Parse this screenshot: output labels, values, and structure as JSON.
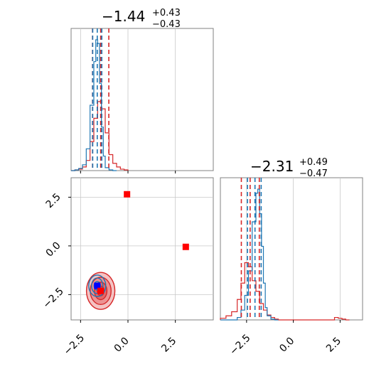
{
  "chart_data": [
    {
      "type": "histogram",
      "panel": "top-left",
      "title": {
        "value": "−1.44",
        "plus": "+0.43",
        "minus": "−0.43"
      },
      "xlim": [
        -3.0,
        4.5
      ],
      "x_ticks": [
        -2.5,
        0.0,
        2.5
      ],
      "grid": true,
      "series": [
        {
          "color": "#d62728",
          "bins": [
            -3.0,
            -2.8,
            -2.6,
            -2.4,
            -2.2,
            -2.0,
            -1.8,
            -1.6,
            -1.4,
            -1.2,
            -1.0,
            -0.8,
            -0.6,
            -0.4,
            -0.2,
            0.0
          ],
          "counts": [
            0,
            1,
            2,
            5,
            14,
            40,
            72,
            95,
            85,
            52,
            22,
            10,
            5,
            2,
            1
          ]
        },
        {
          "color": "#1f77b4",
          "bins": [
            -3.0,
            -2.8,
            -2.6,
            -2.4,
            -2.2,
            -2.0,
            -1.8,
            -1.7,
            -1.6,
            -1.5,
            -1.4,
            -1.3,
            -1.2,
            -1.0,
            -0.8,
            -0.6
          ],
          "counts": [
            0,
            1,
            3,
            8,
            30,
            90,
            150,
            180,
            175,
            120,
            60,
            20,
            4,
            1,
            0
          ]
        }
      ],
      "quantile_lines": [
        {
          "color": "#d62728",
          "x": [
            -1.87,
            -1.44,
            -1.01
          ]
        },
        {
          "color": "#1f77b4",
          "x": [
            -1.86,
            -1.62,
            -1.38
          ]
        }
      ]
    },
    {
      "type": "scatter-contour",
      "panel": "bottom-left",
      "xlim": [
        -3.0,
        4.5
      ],
      "ylim": [
        -3.8,
        3.5
      ],
      "x_ticks": [
        -2.5,
        0.0,
        2.5
      ],
      "y_ticks": [
        -2.5,
        0.0,
        2.5
      ],
      "grid": true,
      "markers": [
        {
          "color": "#ff0000",
          "shape": "square",
          "x": -0.05,
          "y": 2.65
        },
        {
          "color": "#ff0000",
          "shape": "square",
          "x": 3.05,
          "y": -0.05
        },
        {
          "color": "#0000ff",
          "shape": "square",
          "x": -1.62,
          "y": -2.05
        },
        {
          "color": "#ff0000",
          "shape": "square",
          "x": -1.44,
          "y": -2.31
        }
      ],
      "contours": [
        {
          "color": "#d62728",
          "cx": -1.44,
          "cy": -2.31,
          "levels": [
            [
              0.75,
              0.95
            ],
            [
              0.55,
              0.7
            ],
            [
              0.33,
              0.45
            ],
            [
              0.18,
              0.25
            ]
          ]
        },
        {
          "color": "#1f77b4",
          "cx": -1.62,
          "cy": -2.05,
          "levels": [
            [
              0.45,
              0.55
            ],
            [
              0.3,
              0.4
            ],
            [
              0.17,
              0.22
            ]
          ]
        }
      ]
    },
    {
      "type": "histogram",
      "panel": "bottom-right",
      "title": {
        "value": "−2.31",
        "plus": "+0.49",
        "minus": "−0.47"
      },
      "xlim": [
        -3.9,
        3.7
      ],
      "x_ticks": [
        -2.5,
        0.0,
        2.5
      ],
      "grid": true,
      "series": [
        {
          "color": "#d62728",
          "bins": [
            -3.9,
            -3.6,
            -3.3,
            -3.0,
            -2.8,
            -2.6,
            -2.4,
            -2.2,
            -2.0,
            -1.8,
            -1.6,
            -1.4,
            -1.2,
            -1.0,
            -0.8,
            -0.6,
            2.2,
            2.4,
            2.6,
            2.8,
            3.0
          ],
          "counts": [
            2,
            5,
            10,
            25,
            45,
            70,
            65,
            48,
            35,
            20,
            12,
            6,
            3,
            1,
            0,
            0,
            3,
            2,
            1,
            0
          ]
        },
        {
          "color": "#1f77b4",
          "bins": [
            -3.9,
            -3.0,
            -2.8,
            -2.6,
            -2.4,
            -2.2,
            -2.0,
            -1.9,
            -1.8,
            -1.7,
            -1.6,
            -1.5,
            -1.4,
            -1.2,
            -1.0,
            -0.8
          ],
          "counts": [
            0,
            3,
            12,
            30,
            60,
            120,
            155,
            160,
            130,
            90,
            45,
            15,
            5,
            1,
            0
          ]
        }
      ],
      "quantile_lines": [
        {
          "color": "#d62728",
          "x": [
            -2.78,
            -2.31,
            -1.82
          ]
        },
        {
          "color": "#1f77b4",
          "x": [
            -2.45,
            -2.05,
            -1.72
          ]
        }
      ]
    }
  ],
  "labels": {
    "top_title_value": "−1.44",
    "top_title_plus": "+0.43",
    "top_title_minus": "−0.43",
    "right_title_value": "−2.31",
    "right_title_plus": "+0.49",
    "right_title_minus": "−0.47"
  }
}
